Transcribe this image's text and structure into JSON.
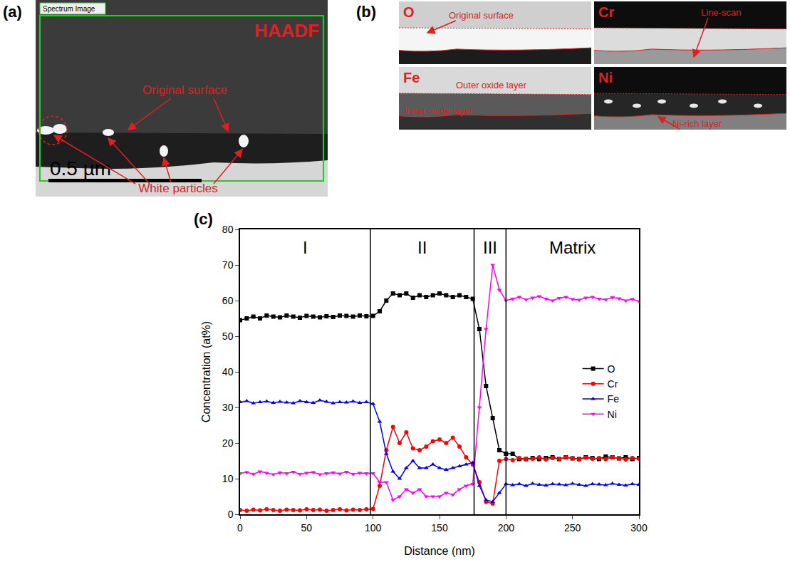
{
  "panel_a": {
    "letter": "(a)",
    "title": "HAADF",
    "box_label": "Spectrum Image",
    "surface_label": "Original surface",
    "particles_label": "White particles",
    "scale_bar": "0.5 µm"
  },
  "panel_b": {
    "letter": "(b)",
    "maps": [
      {
        "element": "O",
        "labels": [
          "Original surface"
        ]
      },
      {
        "element": "Cr",
        "labels": [
          "Line-scan"
        ]
      },
      {
        "element": "Fe",
        "labels": [
          "Outer oxide layer",
          "Inner oxide layer"
        ]
      },
      {
        "element": "Ni",
        "labels": [
          "Ni-rich layer"
        ]
      }
    ]
  },
  "chart_data": {
    "type": "line",
    "label": "(c)",
    "x_label": "Distance (nm)",
    "y_label": "Concentration (at%)",
    "xlim": [
      0,
      300
    ],
    "xticks": [
      0,
      50,
      100,
      150,
      200,
      250,
      300
    ],
    "ylim": [
      0,
      80
    ],
    "yticks": [
      0,
      10,
      20,
      30,
      40,
      50,
      60,
      70,
      80
    ],
    "grid": false,
    "legend": "right",
    "regions": [
      {
        "label": "I",
        "from": 0,
        "to": 98
      },
      {
        "label": "II",
        "from": 98,
        "to": 176
      },
      {
        "label": "III",
        "from": 176,
        "to": 200
      },
      {
        "label": "Matrix",
        "from": 200,
        "to": 300
      }
    ],
    "x": [
      0,
      5,
      10,
      15,
      20,
      25,
      30,
      35,
      40,
      45,
      50,
      55,
      60,
      65,
      70,
      75,
      80,
      85,
      90,
      95,
      100,
      105,
      110,
      115,
      120,
      125,
      130,
      135,
      140,
      145,
      150,
      155,
      160,
      165,
      170,
      175,
      180,
      185,
      190,
      195,
      200,
      205,
      210,
      215,
      220,
      225,
      230,
      235,
      240,
      245,
      250,
      255,
      260,
      265,
      270,
      275,
      280,
      285,
      290,
      295,
      300
    ],
    "series": [
      {
        "name": "O",
        "color": "#000000",
        "marker": "square",
        "values": [
          54.5,
          55,
          55.5,
          55,
          55.8,
          55.5,
          55.3,
          55.8,
          55.5,
          55.2,
          55.7,
          55.5,
          55.3,
          55.6,
          55.4,
          55.8,
          55.7,
          55.5,
          55.8,
          55.6,
          55.7,
          57,
          60,
          62,
          61.5,
          62,
          60.8,
          61.5,
          61,
          61.5,
          62,
          61.5,
          61,
          61.5,
          61,
          60.5,
          52,
          36,
          27,
          18,
          17,
          17,
          15.5,
          15.5,
          15.8,
          15.5,
          15.8,
          16,
          15.5,
          16,
          15.7,
          15.5,
          16,
          15.8,
          15.5,
          16.2,
          16,
          15.7,
          16,
          15.5,
          15.8
        ]
      },
      {
        "name": "Cr",
        "color": "#ff0000",
        "marker": "circle",
        "values": [
          1.2,
          1,
          1.3,
          1.1,
          1.4,
          1.2,
          1,
          1.3,
          1.2,
          1.1,
          1.4,
          1.2,
          1.3,
          1,
          1.2,
          1.4,
          1.1,
          1.3,
          1.2,
          1.4,
          1.5,
          8,
          18,
          24.5,
          20,
          23,
          18.5,
          18,
          19,
          20.5,
          21,
          20,
          21.5,
          19,
          16,
          14,
          9,
          3.5,
          3,
          15,
          15.5,
          15.2,
          15.8,
          15.5,
          15.6,
          16,
          15.4,
          15.8,
          15.5,
          16,
          15.7,
          15.4,
          15.9,
          15.6,
          15.8,
          15.5,
          16,
          15.7,
          15.4,
          15.8,
          15.6
        ]
      },
      {
        "name": "Fe",
        "color": "#0000ff",
        "marker": "triangle-up",
        "values": [
          31.5,
          31.8,
          31.2,
          31.5,
          31.7,
          31.3,
          31.6,
          31.4,
          31.2,
          31.8,
          31.5,
          31.3,
          32,
          31.6,
          31.2,
          31.5,
          31.4,
          31.7,
          31.3,
          31.5,
          31,
          26,
          17,
          12,
          10,
          13,
          15,
          13,
          13,
          14,
          13,
          12.5,
          13,
          13.5,
          14,
          14.5,
          8,
          4,
          3.5,
          6,
          8.5,
          8.2,
          8.5,
          8,
          8.6,
          8.3,
          8.1,
          8.5,
          8.4,
          8.2,
          8.6,
          8.3,
          8,
          8.5,
          8.4,
          8.2,
          8.6,
          8.3,
          8.1,
          8.5,
          8.3
        ]
      },
      {
        "name": "Ni",
        "color": "#ff00ff",
        "marker": "triangle-down",
        "values": [
          11.5,
          11.8,
          11.3,
          12,
          11.6,
          11.2,
          11.7,
          11.5,
          11.9,
          11.3,
          11.6,
          11.8,
          11.2,
          11.5,
          11.7,
          11.4,
          11.9,
          11.3,
          11.6,
          11.5,
          11.5,
          9,
          9,
          4,
          5,
          7,
          6,
          7,
          5,
          5,
          5,
          6,
          5.5,
          7,
          8,
          8.5,
          30,
          52,
          70,
          63,
          60,
          60.5,
          61,
          60.3,
          60.8,
          61.2,
          60.5,
          60,
          60.7,
          61,
          60.4,
          60.2,
          60.8,
          61,
          60.5,
          60.3,
          60.9,
          60.6,
          60,
          60.4,
          59.8
        ]
      }
    ]
  }
}
